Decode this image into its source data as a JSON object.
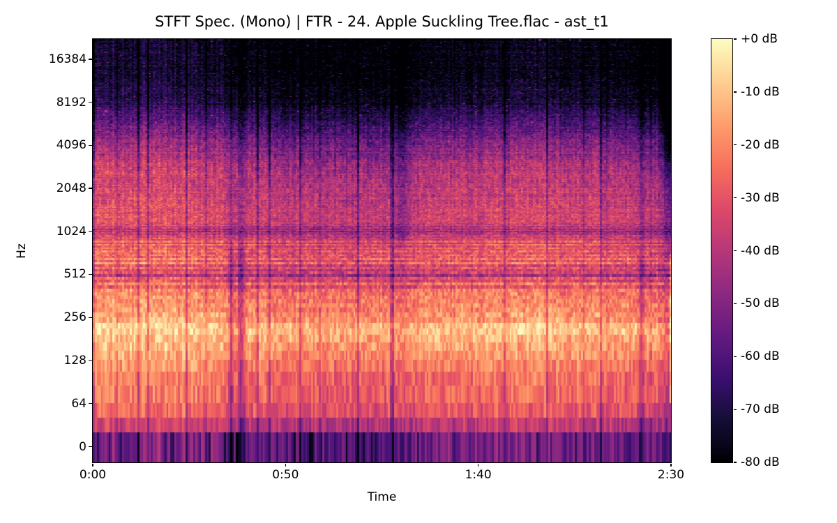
{
  "figure": {
    "title": "STFT Spec. (Mono) | FTR - 24. Apple Suckling Tree.flac - ast_t1",
    "xlabel": "Time",
    "ylabel": "Hz"
  },
  "axes": {
    "xticks": [
      "0:00",
      "0:50",
      "1:40",
      "2:30"
    ],
    "yticks": [
      "0",
      "64",
      "128",
      "256",
      "512",
      "1024",
      "2048",
      "4096",
      "8192",
      "16384"
    ]
  },
  "colorbar": {
    "tick_labels": [
      "+0 dB",
      "-10 dB",
      "-20 dB",
      "-30 dB",
      "-40 dB",
      "-50 dB",
      "-60 dB",
      "-70 dB",
      "-80 dB"
    ],
    "colormap_name": "magma",
    "colormap": [
      "#000004",
      "#140e36",
      "#3b0f70",
      "#641a80",
      "#8c2981",
      "#b73779",
      "#de4968",
      "#f7705c",
      "#fe9f6d",
      "#fecf92",
      "#fcfdbf"
    ]
  },
  "chart_data": {
    "type": "heatmap",
    "subtype": "stft-spectrogram",
    "title": "STFT Spec. (Mono) | FTR - 24. Apple Suckling Tree.flac - ast_t1",
    "xlabel": "Time",
    "ylabel": "Hz",
    "x_range_sec": [
      0,
      150
    ],
    "x_tick_sec": [
      0,
      50,
      100,
      150
    ],
    "y_scale": "symlog",
    "y_tick_hz": [
      0,
      64,
      128,
      256,
      512,
      1024,
      2048,
      4096,
      8192,
      16384
    ],
    "y_max_hz": 22050,
    "value_range_db": [
      -80,
      0
    ],
    "freq_bin_hz": 21.53,
    "freq_profile_db": [
      [
        0,
        -53.5
      ],
      [
        5.7,
        -54
      ],
      [
        19,
        -48
      ],
      [
        31.5,
        -36
      ],
      [
        47,
        -33
      ],
      [
        64,
        -30
      ],
      [
        93,
        -24
      ],
      [
        128,
        -17.5
      ],
      [
        173,
        -14.5
      ],
      [
        221,
        -10.5
      ],
      [
        256,
        -16
      ],
      [
        339,
        -21.5
      ],
      [
        425,
        -23
      ],
      [
        474,
        -30
      ],
      [
        512,
        -36
      ],
      [
        609,
        -25
      ],
      [
        745,
        -26
      ],
      [
        882,
        -30
      ],
      [
        1024,
        -41
      ],
      [
        1194,
        -34
      ],
      [
        1462,
        -35
      ],
      [
        2048,
        -38
      ],
      [
        2869,
        -41
      ],
      [
        4096,
        -50
      ],
      [
        5950,
        -62
      ],
      [
        8192,
        -73
      ],
      [
        13834,
        -78
      ],
      [
        22050,
        -78.5
      ]
    ],
    "quiet_gaps": [
      {
        "t": 35.8,
        "w": 1.1,
        "d": 20,
        "top": 0.5,
        "bot": 1.0
      },
      {
        "t": 38.3,
        "w": 1.4,
        "d": 22,
        "top": 0.5,
        "bot": 1.0
      },
      {
        "t": 77.6,
        "w": 0.4,
        "d": 26,
        "top": 1.0,
        "bot": 1.0
      },
      {
        "t": 80.0,
        "w": 2.6,
        "d": 7,
        "top": 1.2,
        "bot": 0.25
      },
      {
        "t": 142.3,
        "w": 1.2,
        "d": 13,
        "top": 0.6,
        "bot": 1.0
      }
    ],
    "end_fade": {
      "start": 146.2,
      "end": 150.0,
      "top_scale": 1.0
    },
    "noise_seed": 1
  }
}
